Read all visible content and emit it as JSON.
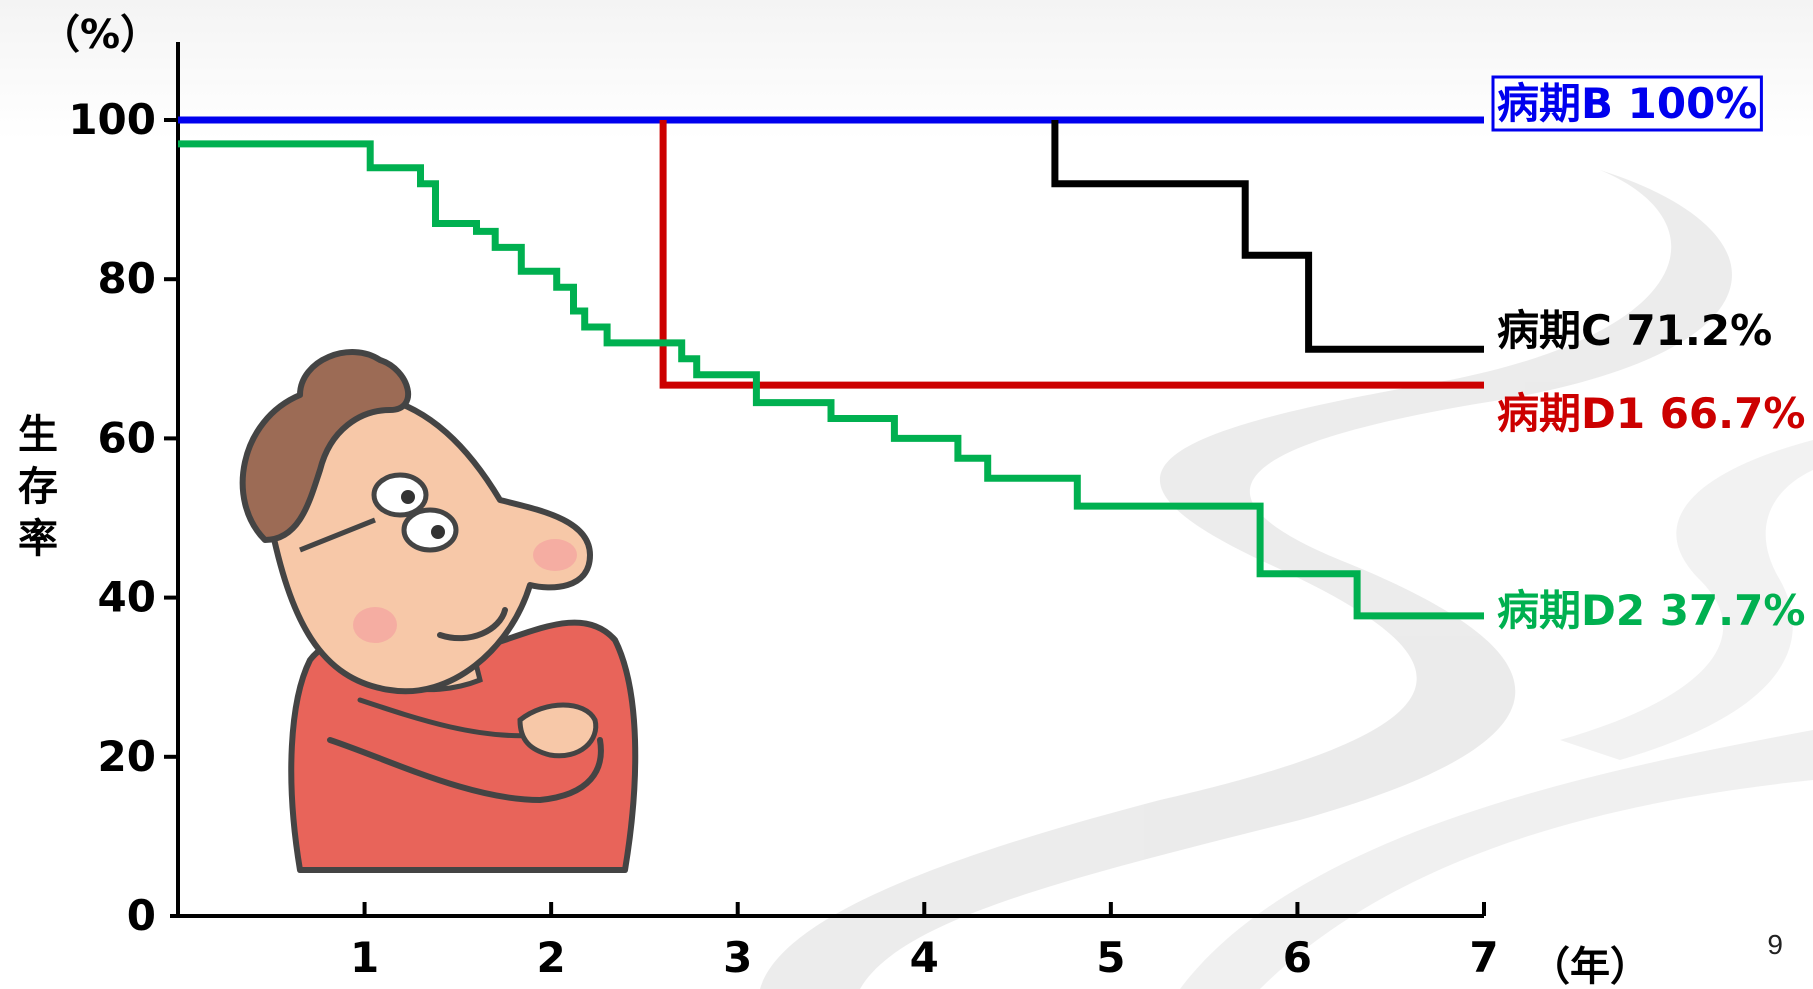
{
  "page_number": "9",
  "chart_data": {
    "type": "line",
    "subtype": "step",
    "title": "",
    "x_unit_label": "（年）",
    "y_unit_label": "（%）",
    "ylabel": "生存率",
    "xlim": [
      0,
      7
    ],
    "ylim": [
      0,
      100
    ],
    "x_ticks": [
      "1",
      "2",
      "3",
      "4",
      "5",
      "6",
      "7"
    ],
    "y_ticks": [
      "0",
      "20",
      "40",
      "60",
      "80",
      "100"
    ],
    "grid": false,
    "legend_position": "right, labels at line ends",
    "series": [
      {
        "name": "病期B 100%",
        "color": "#0000ee",
        "boxed": true,
        "points": [
          [
            0,
            100
          ],
          [
            7,
            100
          ]
        ]
      },
      {
        "name": "病期C 71.2%",
        "color": "#000000",
        "boxed": false,
        "points": [
          [
            4.7,
            100
          ],
          [
            4.7,
            92
          ],
          [
            5.72,
            92
          ],
          [
            5.72,
            83
          ],
          [
            6.06,
            83
          ],
          [
            6.06,
            71.2
          ],
          [
            7,
            71.2
          ]
        ]
      },
      {
        "name": "病期D1 66.7%",
        "color": "#cc0000",
        "boxed": false,
        "points": [
          [
            2.6,
            100
          ],
          [
            2.6,
            66.7
          ],
          [
            7,
            66.7
          ]
        ]
      },
      {
        "name": "病期D2 37.7%",
        "color": "#00b050",
        "boxed": false,
        "points": [
          [
            0,
            97
          ],
          [
            1.03,
            97
          ],
          [
            1.03,
            94
          ],
          [
            1.3,
            94
          ],
          [
            1.3,
            92
          ],
          [
            1.38,
            92
          ],
          [
            1.38,
            87
          ],
          [
            1.6,
            87
          ],
          [
            1.6,
            86
          ],
          [
            1.7,
            86
          ],
          [
            1.7,
            84
          ],
          [
            1.84,
            84
          ],
          [
            1.84,
            81
          ],
          [
            2.03,
            81
          ],
          [
            2.03,
            79
          ],
          [
            2.12,
            79
          ],
          [
            2.12,
            76
          ],
          [
            2.18,
            76
          ],
          [
            2.18,
            74
          ],
          [
            2.3,
            74
          ],
          [
            2.3,
            72
          ],
          [
            2.7,
            72
          ],
          [
            2.7,
            70
          ],
          [
            2.78,
            70
          ],
          [
            2.78,
            68
          ],
          [
            3.1,
            68
          ],
          [
            3.1,
            64.5
          ],
          [
            3.5,
            64.5
          ],
          [
            3.5,
            62.5
          ],
          [
            3.84,
            62.5
          ],
          [
            3.84,
            60
          ],
          [
            4.18,
            60
          ],
          [
            4.18,
            57.5
          ],
          [
            4.34,
            57.5
          ],
          [
            4.34,
            55
          ],
          [
            4.82,
            55
          ],
          [
            4.82,
            51.5
          ],
          [
            5.8,
            51.5
          ],
          [
            5.8,
            43
          ],
          [
            6.32,
            43
          ],
          [
            6.32,
            37.7
          ],
          [
            7,
            37.7
          ]
        ]
      }
    ]
  }
}
